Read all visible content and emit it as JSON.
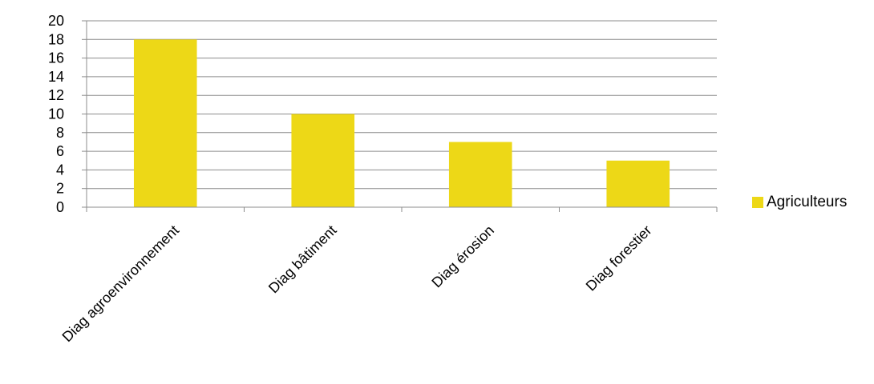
{
  "chart_data": {
    "type": "bar",
    "categories": [
      "Diag agroenvironnement",
      "Diag bâtiment",
      "Diag érosion",
      "Diag forestier"
    ],
    "series": [
      {
        "name": "Agriculteurs",
        "values": [
          18,
          10,
          7,
          5
        ],
        "color": "#EDD817"
      }
    ],
    "ylim": [
      0,
      20
    ],
    "yticks": [
      0,
      2,
      4,
      6,
      8,
      10,
      12,
      14,
      16,
      18,
      20
    ],
    "grid": true,
    "legend_position": "right"
  },
  "legend": {
    "label": "Agriculteurs"
  },
  "colors": {
    "bar": "#EDD817",
    "grid": "#8c8c8c",
    "axis": "#8c8c8c"
  }
}
